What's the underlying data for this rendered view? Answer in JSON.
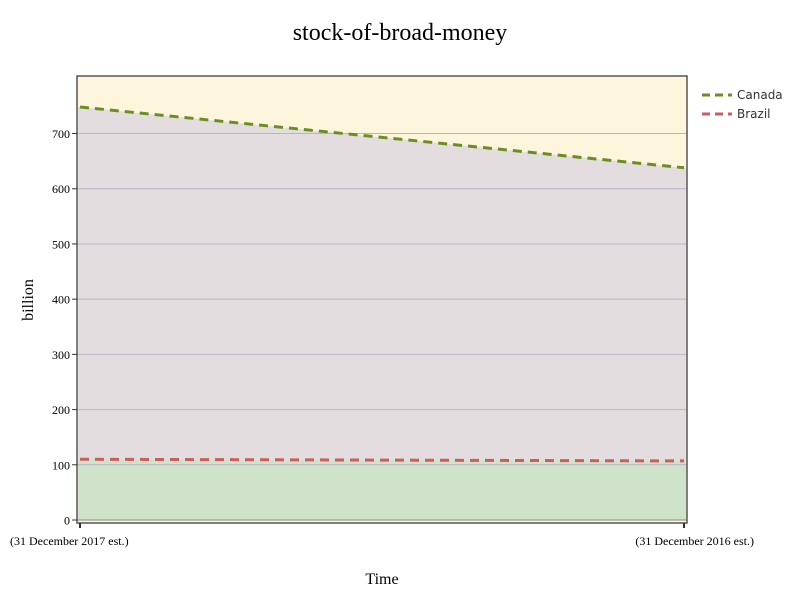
{
  "chart_data": {
    "type": "area",
    "title": "stock-of-broad-money",
    "xlabel": "Time",
    "ylabel": "billion",
    "categories": [
      "(31 December 2017 est.)",
      "(31 December 2016 est.)"
    ],
    "series": [
      {
        "name": "Canada",
        "values": [
          748,
          638
        ],
        "line_color": "#6b8e23",
        "fill_color": "#e3dddf"
      },
      {
        "name": "Brazil",
        "values": [
          110,
          107
        ],
        "line_color": "#cd5c5c",
        "fill_color": "#cfe3cb"
      }
    ],
    "ylim": [
      0,
      800
    ],
    "yticks": [
      0,
      100,
      200,
      300,
      400,
      500,
      600,
      700
    ],
    "grid": true,
    "legend": "top-right",
    "plot_background": "#fdf6dc",
    "grid_color": "#b8b4c8"
  }
}
